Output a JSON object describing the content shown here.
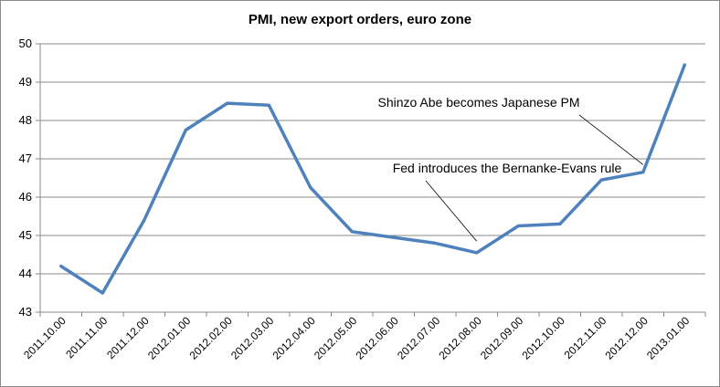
{
  "chart_data": {
    "type": "line",
    "title": "PMI, new export orders, euro zone",
    "xlabel": "",
    "ylabel": "",
    "categories": [
      "2011.10.00",
      "2011.11.00",
      "2011.12.00",
      "2012.01.00",
      "2012.02.00",
      "2012.03.00",
      "2012.04.00",
      "2012.05.00",
      "2012.06.00",
      "2012.07.00",
      "2012.08.00",
      "2012.09.00",
      "2012.10.00",
      "2012.11.00",
      "2012.12.00",
      "2013.01.00"
    ],
    "series": [
      {
        "values": [
          44.2,
          43.5,
          45.4,
          47.75,
          48.45,
          48.4,
          46.25,
          45.1,
          44.95,
          44.8,
          44.55,
          45.25,
          45.3,
          46.45,
          46.65,
          49.45
        ]
      }
    ],
    "ylim": [
      43,
      50
    ],
    "yticks": [
      43,
      44,
      45,
      46,
      47,
      48,
      49,
      50
    ],
    "grid": true,
    "legend": "none",
    "line_color": "#4f81bd",
    "annotations": [
      {
        "text": "Shinzo Abe becomes Japanese PM",
        "target_category": "2012.12.00",
        "target_value": 46.85
      },
      {
        "text": "Fed introduces the Bernanke-Evans rule",
        "target_category": "2012.08.00",
        "target_value": 44.85
      }
    ]
  }
}
